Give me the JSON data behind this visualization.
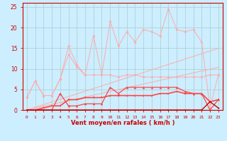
{
  "x": [
    0,
    1,
    2,
    3,
    4,
    5,
    6,
    7,
    8,
    9,
    10,
    11,
    12,
    13,
    14,
    15,
    16,
    17,
    18,
    19,
    20,
    21,
    22,
    23
  ],
  "line_light1": [
    3.0,
    7.0,
    3.5,
    3.5,
    7.5,
    15.5,
    11.0,
    8.5,
    18.0,
    8.5,
    21.5,
    15.5,
    19.0,
    16.5,
    19.5,
    19.0,
    18.0,
    24.5,
    19.5,
    19.0,
    19.5,
    16.5,
    0.5,
    8.5
  ],
  "line_light2": [
    3.0,
    7.0,
    3.5,
    3.5,
    7.5,
    13.5,
    10.5,
    8.5,
    8.5,
    8.5,
    8.5,
    8.0,
    8.5,
    8.5,
    8.0,
    8.0,
    8.0,
    8.0,
    8.0,
    8.0,
    8.0,
    8.0,
    8.5,
    8.5
  ],
  "line_linear_top": [
    0.0,
    0.65,
    1.3,
    1.95,
    2.6,
    3.25,
    3.9,
    4.55,
    5.2,
    5.85,
    6.5,
    7.15,
    7.8,
    8.45,
    9.1,
    9.75,
    10.4,
    11.05,
    11.7,
    12.35,
    13.0,
    13.65,
    14.3,
    14.95
  ],
  "line_linear_bot": [
    0.0,
    0.45,
    0.9,
    1.35,
    1.8,
    2.25,
    2.7,
    3.15,
    3.6,
    4.05,
    4.5,
    4.95,
    5.4,
    5.85,
    6.3,
    6.75,
    7.2,
    7.65,
    8.1,
    8.55,
    9.0,
    9.45,
    9.9,
    10.35
  ],
  "line_mid1": [
    0.0,
    0.0,
    0.0,
    0.0,
    4.0,
    1.0,
    1.0,
    1.5,
    1.5,
    1.5,
    5.5,
    4.0,
    5.5,
    5.5,
    5.5,
    5.5,
    5.5,
    5.5,
    5.5,
    4.5,
    4.0,
    4.0,
    0.0,
    2.5
  ],
  "line_mid2": [
    0.0,
    0.0,
    0.5,
    1.0,
    1.0,
    2.5,
    2.5,
    3.0,
    3.0,
    3.0,
    3.5,
    3.5,
    3.5,
    3.5,
    3.5,
    3.5,
    4.0,
    4.0,
    4.5,
    4.0,
    4.0,
    4.0,
    2.0,
    2.5
  ],
  "line_dark": [
    0,
    0,
    0,
    0,
    0,
    0,
    0,
    0,
    0,
    0,
    0,
    0,
    0,
    0,
    0,
    0,
    0,
    0,
    0,
    0,
    0,
    0,
    2.0,
    0.5
  ],
  "bg_color": "#cceeff",
  "grid_color": "#aacccc",
  "color_light": "#ffaaaa",
  "color_mid": "#ff4444",
  "color_dark": "#cc0000",
  "xlabel": "Vent moyen/en rafales ( km/h )",
  "ylim": [
    0,
    26
  ],
  "xlim": [
    -0.5,
    23.5
  ],
  "yticks": [
    0,
    5,
    10,
    15,
    20,
    25
  ],
  "xticks": [
    0,
    1,
    2,
    3,
    4,
    5,
    6,
    7,
    8,
    9,
    10,
    11,
    12,
    13,
    14,
    15,
    16,
    17,
    18,
    19,
    20,
    21,
    22,
    23
  ],
  "arrow_angles": [
    225,
    90,
    90,
    270,
    270,
    270,
    270,
    270,
    270,
    270,
    90,
    90,
    90,
    90,
    90,
    90,
    90,
    90,
    90,
    90,
    90,
    90,
    45,
    90
  ]
}
